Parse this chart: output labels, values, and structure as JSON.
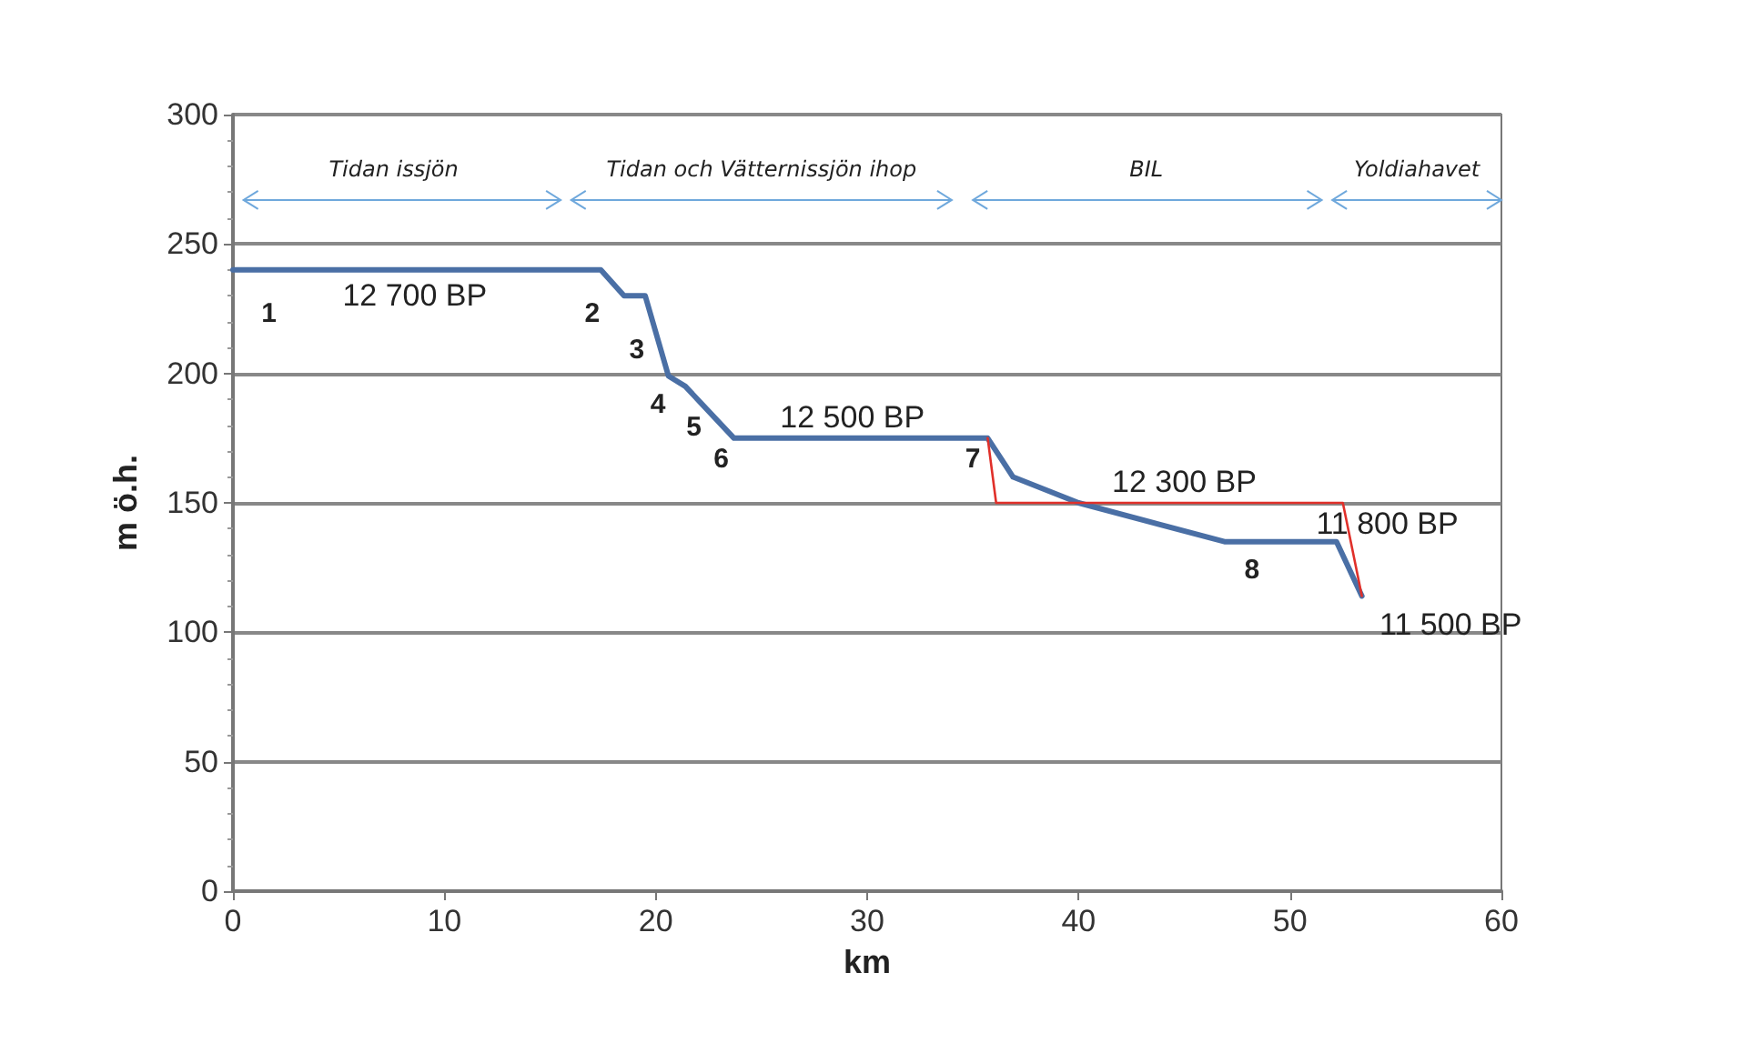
{
  "chart_data": {
    "type": "line",
    "xlabel": "km",
    "ylabel": "m ö.h.",
    "xlim": [
      0,
      60
    ],
    "xticks": [
      0,
      10,
      20,
      30,
      40,
      50,
      60
    ],
    "ylim": [
      0,
      300
    ],
    "yticks": [
      0,
      50,
      100,
      150,
      200,
      250,
      300
    ],
    "grid": "y",
    "marker": "none",
    "line_style": "solid",
    "series": [
      {
        "color": "#4a6fa5",
        "x": [
          0,
          17.4,
          18.5,
          19.5,
          20.6,
          21.4,
          23.7,
          35.7,
          36.9,
          40,
          46.9,
          52.2,
          53.4
        ],
        "values": [
          240,
          240,
          230,
          230,
          199,
          195,
          175,
          175,
          160,
          150,
          135,
          135,
          114
        ]
      },
      {
        "color": "#e0302a",
        "x": [
          35.7,
          36.1,
          52.5,
          53.4
        ],
        "values": [
          175,
          150,
          150,
          114
        ]
      }
    ],
    "annotations": [
      "Tidan issjön",
      "Tidan och Vätternissjön ihop",
      "BIL",
      "Yoldiahavet",
      "1",
      "12 700 BP",
      "2",
      "3",
      "4",
      "5",
      "6",
      "12 500 BP",
      "7",
      "12 300 BP",
      "11 800 BP",
      "8",
      "11 500 BP"
    ]
  }
}
